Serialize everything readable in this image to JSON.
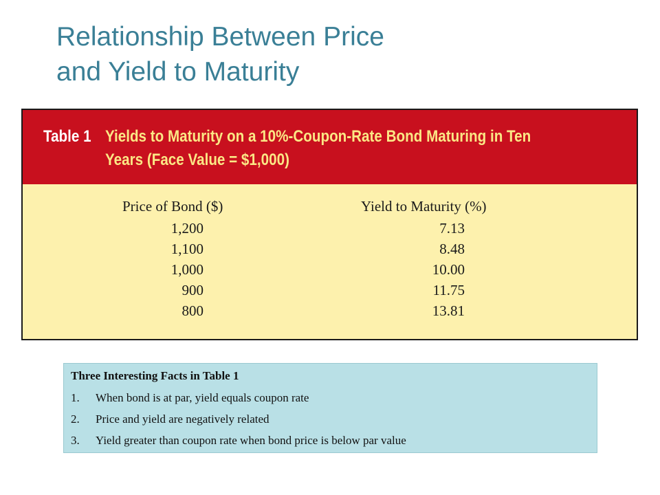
{
  "slide": {
    "title_line1": "Relationship Between Price",
    "title_line2": "and Yield to Maturity"
  },
  "table": {
    "tag": "Table 1",
    "caption_line1": "Yields to Maturity on a 10%-Coupon-Rate Bond Maturing in Ten",
    "caption_line2": "Years (Face Value = $1,000)",
    "columns": [
      "Price of Bond ($)",
      "Yield to Maturity (%)"
    ],
    "rows": [
      {
        "price": "1,200",
        "yield": "7.13"
      },
      {
        "price": "1,100",
        "yield": "8.48"
      },
      {
        "price": "1,000",
        "yield": "10.00"
      },
      {
        "price": "900",
        "yield": "11.75"
      },
      {
        "price": "800",
        "yield": "13.81"
      }
    ],
    "colors": {
      "header_bg": "#c8101e",
      "caption_text": "#fbe785",
      "body_bg": "#fdf1ad"
    }
  },
  "facts": {
    "title": "Three Interesting Facts in Table 1",
    "items": [
      {
        "num": "1.",
        "text": "When bond is at par, yield equals coupon rate"
      },
      {
        "num": "2.",
        "text": "Price and yield are negatively related"
      },
      {
        "num": "3.",
        "text": "Yield greater than coupon rate when bond price is below par value"
      }
    ],
    "bg": "#b9e0e6"
  }
}
